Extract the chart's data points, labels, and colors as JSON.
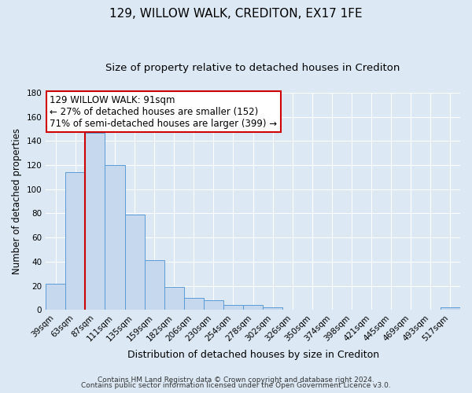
{
  "title": "129, WILLOW WALK, CREDITON, EX17 1FE",
  "subtitle": "Size of property relative to detached houses in Crediton",
  "xlabel": "Distribution of detached houses by size in Crediton",
  "ylabel": "Number of detached properties",
  "bar_labels": [
    "39sqm",
    "63sqm",
    "87sqm",
    "111sqm",
    "135sqm",
    "159sqm",
    "182sqm",
    "206sqm",
    "230sqm",
    "254sqm",
    "278sqm",
    "302sqm",
    "326sqm",
    "350sqm",
    "374sqm",
    "398sqm",
    "421sqm",
    "445sqm",
    "469sqm",
    "493sqm",
    "517sqm"
  ],
  "bar_values": [
    22,
    114,
    147,
    120,
    79,
    41,
    19,
    10,
    8,
    4,
    4,
    2,
    0,
    0,
    0,
    0,
    0,
    0,
    0,
    0,
    2
  ],
  "bar_color": "#c5d8ed",
  "bar_edge_color": "#5b9bd5",
  "background_color": "#dce9f5",
  "grid_color": "#ffffff",
  "vline_x": 1.5,
  "vline_color": "#cc0000",
  "annotation_line1": "129 WILLOW WALK: 91sqm",
  "annotation_line2": "← 27% of detached houses are smaller (152)",
  "annotation_line3": "71% of semi-detached houses are larger (399) →",
  "annotation_box_color": "#ffffff",
  "annotation_box_edge": "#cc0000",
  "ylim": [
    0,
    180
  ],
  "yticks": [
    0,
    20,
    40,
    60,
    80,
    100,
    120,
    140,
    160,
    180
  ],
  "footer1": "Contains HM Land Registry data © Crown copyright and database right 2024.",
  "footer2": "Contains public sector information licensed under the Open Government Licence v3.0.",
  "title_fontsize": 11,
  "subtitle_fontsize": 9.5,
  "xlabel_fontsize": 9,
  "ylabel_fontsize": 8.5,
  "tick_fontsize": 7.5,
  "footer_fontsize": 6.5,
  "annot_fontsize": 8.5
}
